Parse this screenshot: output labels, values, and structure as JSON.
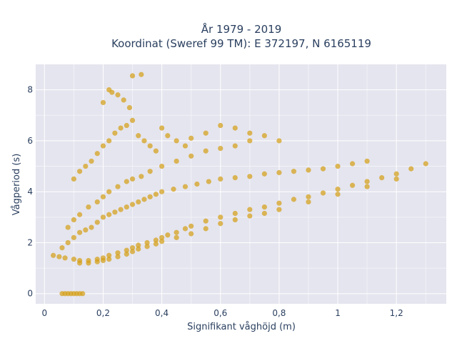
{
  "chart_data": {
    "type": "scatter",
    "title": "År 1979 - 2019",
    "subtitle": "Koordinat (Sweref 99 TM): E 372197, N 6165119",
    "xlabel": "Signifikant våghöjd (m)",
    "ylabel": "Vågperiod (s)",
    "xlim": [
      -0.03,
      1.37
    ],
    "ylim": [
      -0.4,
      9.0
    ],
    "x_ticks": [
      0,
      0.2,
      0.4,
      0.6,
      0.8,
      1.0,
      1.2
    ],
    "x_tick_labels": [
      "0",
      "0,2",
      "0,4",
      "0,6",
      "0,8",
      "1",
      "1,2"
    ],
    "y_ticks": [
      0,
      2,
      4,
      6,
      8
    ],
    "y_tick_labels": [
      "0",
      "2",
      "4",
      "6",
      "8"
    ],
    "grid": true,
    "legend": "none",
    "marker_color": "#D4A017",
    "background_color": "#E5E5EF",
    "series": [
      {
        "x": [
          0.03,
          0.05,
          0.07,
          0.1,
          0.12,
          0.15,
          0.18,
          0.2,
          0.22,
          0.25,
          0.28,
          0.3,
          0.32,
          0.35,
          0.38,
          0.4,
          0.42,
          0.45,
          0.48,
          0.5,
          0.55,
          0.6,
          0.65,
          0.7,
          0.75,
          0.8,
          0.85,
          0.9,
          0.95,
          1.0,
          1.05,
          1.1,
          1.15,
          1.2,
          1.25,
          1.3,
          0.06,
          0.08,
          0.1,
          0.12,
          0.14,
          0.16,
          0.18,
          0.2,
          0.22,
          0.24,
          0.26,
          0.28,
          0.3,
          0.32,
          0.34,
          0.36,
          0.38,
          0.4,
          0.44,
          0.48,
          0.52,
          0.56,
          0.6,
          0.65,
          0.7,
          0.75,
          0.8,
          0.85,
          0.9,
          0.95,
          1.0,
          1.05,
          1.1,
          0.08,
          0.1,
          0.12,
          0.15,
          0.18,
          0.2,
          0.22,
          0.25,
          0.28,
          0.3,
          0.33,
          0.36,
          0.4,
          0.45,
          0.5,
          0.55,
          0.6,
          0.65,
          0.7,
          0.1,
          0.12,
          0.14,
          0.16,
          0.18,
          0.2,
          0.22,
          0.24,
          0.26,
          0.28,
          0.3,
          0.32,
          0.34,
          0.36,
          0.38,
          0.4,
          0.42,
          0.45,
          0.48,
          0.5,
          0.55,
          0.6,
          0.65,
          0.7,
          0.75,
          0.8,
          0.06,
          0.07,
          0.08,
          0.09,
          0.1,
          0.11,
          0.12,
          0.13,
          0.12,
          0.15,
          0.18,
          0.2,
          0.22,
          0.25,
          0.28,
          0.3,
          0.32,
          0.35,
          0.38,
          0.4,
          0.45,
          0.5,
          0.55,
          0.6,
          0.65,
          0.7,
          0.75,
          0.8,
          0.9,
          1.0,
          1.1,
          1.2,
          0.3,
          0.33,
          0.22,
          0.25,
          0.27,
          0.2,
          0.23,
          0.29
        ],
        "y": [
          1.5,
          1.45,
          1.4,
          1.35,
          1.3,
          1.3,
          1.35,
          1.4,
          1.5,
          1.6,
          1.7,
          1.8,
          1.9,
          2.0,
          2.1,
          2.2,
          2.3,
          2.4,
          2.55,
          2.65,
          2.85,
          3.0,
          3.15,
          3.3,
          3.4,
          3.55,
          3.7,
          3.8,
          3.95,
          4.1,
          4.25,
          4.4,
          4.55,
          4.7,
          4.9,
          5.1,
          1.8,
          2.0,
          2.2,
          2.4,
          2.5,
          2.6,
          2.8,
          3.0,
          3.1,
          3.2,
          3.3,
          3.4,
          3.5,
          3.6,
          3.7,
          3.8,
          3.9,
          4.0,
          4.1,
          4.2,
          4.3,
          4.4,
          4.5,
          4.55,
          4.6,
          4.7,
          4.75,
          4.8,
          4.85,
          4.9,
          5.0,
          5.1,
          5.2,
          2.6,
          2.9,
          3.1,
          3.4,
          3.6,
          3.8,
          4.0,
          4.2,
          4.4,
          4.5,
          4.6,
          4.8,
          5.0,
          5.2,
          5.4,
          5.6,
          5.7,
          5.8,
          6.0,
          4.5,
          4.8,
          5.0,
          5.2,
          5.5,
          5.8,
          6.0,
          6.3,
          6.5,
          6.6,
          6.8,
          6.2,
          6.0,
          5.8,
          5.6,
          6.5,
          6.2,
          6.0,
          5.8,
          6.1,
          6.3,
          6.6,
          6.5,
          6.3,
          6.2,
          6.0,
          0.0,
          0.0,
          0.0,
          0.0,
          0.0,
          0.0,
          0.0,
          0.0,
          1.2,
          1.2,
          1.25,
          1.3,
          1.35,
          1.45,
          1.55,
          1.65,
          1.75,
          1.85,
          1.95,
          2.05,
          2.2,
          2.35,
          2.55,
          2.75,
          2.9,
          3.05,
          3.15,
          3.3,
          3.6,
          3.9,
          4.2,
          4.5,
          8.55,
          8.6,
          8.0,
          7.8,
          7.6,
          7.5,
          7.9,
          7.3
        ]
      }
    ]
  }
}
